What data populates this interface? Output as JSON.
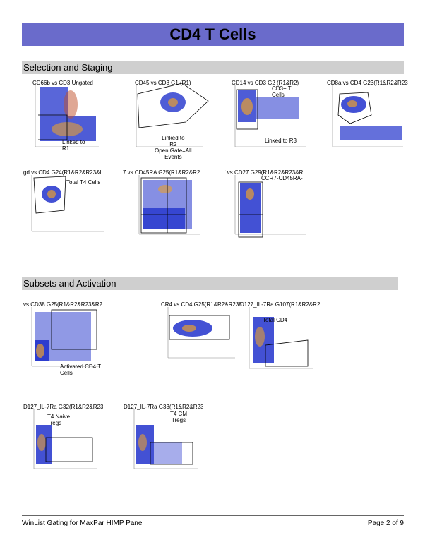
{
  "page_title": "CD4 T Cells",
  "sections": {
    "selection": "Selection and Staging",
    "subsets": "Subsets and Activation"
  },
  "plots": {
    "p1": {
      "title": "CD66b vs CD3  Ungated",
      "note": "Linked to\nR1"
    },
    "p2": {
      "title": "CD45 vs CD3  G1 (R1)",
      "note": "Linked to\nR2\nOpen Gate=All\nEvents"
    },
    "p3": {
      "title": "CD14 vs CD3  G2 (R1&R2)",
      "note": "CD3+ T\nCells",
      "note2": "Linked to R3"
    },
    "p4": {
      "title": "CD8a vs CD4  G23(R1&R2&R23",
      "note": ""
    },
    "p5": {
      "title": "gd vs CD4  G24(R1&R2&R23&I",
      "note": "Total T4 Cells"
    },
    "p6": {
      "title": "7 vs CD45RA  G25(R1&R2&R2",
      "note": ""
    },
    "p7": {
      "title": "' vs CD27  G29(R1&R2&R23&R",
      "note": "CCR7-CD45RA-"
    },
    "p8": {
      "title": "vs CD38  G25(R1&R2&R23&R2",
      "note": "Activated CD4 T\nCells"
    },
    "p9": {
      "title": "CR4 vs CD4  G25(R1&R2&R238",
      "note": ""
    },
    "p10": {
      "title": "D127_IL-7Ra  G107(R1&R2&R2",
      "note": "Total CD4+"
    },
    "p11": {
      "title": "D127_IL-7Ra  G32(R1&R2&R23",
      "note": "T4 Naive\nTregs"
    },
    "p12": {
      "title": "D127_IL-7Ra  G33(R1&R2&R23",
      "note": "T4 CM\nTregs"
    }
  },
  "footer": {
    "left": "WinList Gating for MaxPar HIMP Panel",
    "right": "Page 2 of 9"
  },
  "colors": {
    "title_bar": "#6a6bcb",
    "section_bar": "#cfcfcf",
    "dots": "#2233cc",
    "density": "#e8a030"
  }
}
